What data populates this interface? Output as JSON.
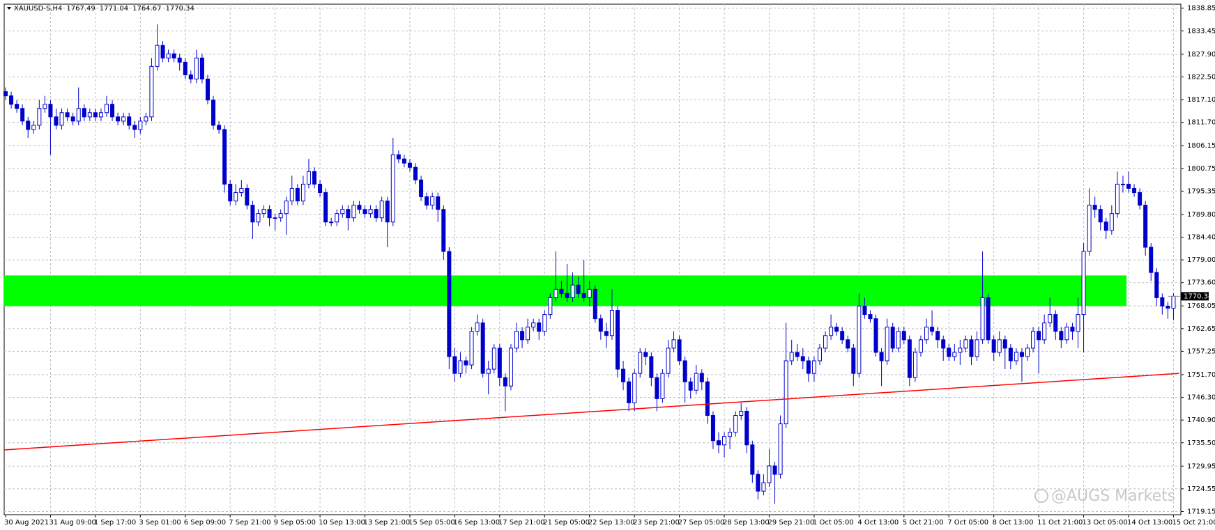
{
  "chart_data": {
    "type": "candlestick",
    "symbol": "XAUUSD-S,H4",
    "watermark": "@AUGS Markets",
    "color": "#0000cc",
    "up_fill": "#ffffff",
    "grid": true,
    "ylim": [
      1718.4,
      1839.8
    ],
    "yticks": [
      {
        "value": 1719.15,
        "label": "1719.15"
      },
      {
        "value": 1724.55,
        "label": "1724.55"
      },
      {
        "value": 1729.95,
        "label": "1729.95"
      },
      {
        "value": 1735.5,
        "label": "1735.50"
      },
      {
        "value": 1740.9,
        "label": "1740.90"
      },
      {
        "value": 1746.3,
        "label": "1746.30"
      },
      {
        "value": 1751.7,
        "label": "1751.70"
      },
      {
        "value": 1757.25,
        "label": "1757.25"
      },
      {
        "value": 1762.65,
        "label": "1762.65"
      },
      {
        "value": 1768.05,
        "label": "1768.05"
      },
      {
        "value": 1773.6,
        "label": "1773.60"
      },
      {
        "value": 1779.0,
        "label": "1779.00"
      },
      {
        "value": 1784.4,
        "label": "1784.40"
      },
      {
        "value": 1789.8,
        "label": "1789.80"
      },
      {
        "value": 1795.35,
        "label": "1795.35"
      },
      {
        "value": 1800.75,
        "label": "1800.75"
      },
      {
        "value": 1806.15,
        "label": "1806.15"
      },
      {
        "value": 1811.7,
        "label": "1811.70"
      },
      {
        "value": 1817.1,
        "label": "1817.10"
      },
      {
        "value": 1822.5,
        "label": "1822.50"
      },
      {
        "value": 1827.9,
        "label": "1827.90"
      },
      {
        "value": 1833.45,
        "label": "1833.45"
      },
      {
        "value": 1838.85,
        "label": "1838.85"
      }
    ],
    "zone": {
      "color": "#00ff00",
      "low": 1768.0,
      "high": 1775.3,
      "from": 0,
      "to": 200
    },
    "trendline": {
      "color": "#ff0000",
      "start": [
        0,
        1733.8
      ],
      "end": [
        209,
        1752.0
      ]
    },
    "x": [
      "30 Aug 2021",
      null,
      null,
      null,
      null,
      null,
      null,
      null,
      "31 Aug 09:00",
      null,
      null,
      null,
      null,
      null,
      null,
      null,
      "1 Sep 17:00",
      null,
      null,
      null,
      null,
      null,
      null,
      null,
      "3 Sep 01:00",
      null,
      null,
      null,
      null,
      null,
      null,
      null,
      "6 Sep 09:00",
      null,
      null,
      null,
      null,
      null,
      null,
      null,
      "7 Sep 21:00",
      null,
      null,
      null,
      null,
      null,
      null,
      null,
      "9 Sep 05:00",
      null,
      null,
      null,
      null,
      null,
      null,
      null,
      "10 Sep 13:00",
      null,
      null,
      null,
      null,
      null,
      null,
      null,
      "13 Sep 21:00",
      null,
      null,
      null,
      null,
      null,
      null,
      null,
      "15 Sep 05:00",
      null,
      null,
      null,
      null,
      null,
      null,
      null,
      "16 Sep 13:00",
      null,
      null,
      null,
      null,
      null,
      null,
      null,
      "17 Sep 21:00",
      null,
      null,
      null,
      null,
      null,
      null,
      null,
      "21 Sep 05:00",
      null,
      null,
      null,
      null,
      null,
      null,
      null,
      "22 Sep 13:00",
      null,
      null,
      null,
      null,
      null,
      null,
      null,
      "23 Sep 21:00",
      null,
      null,
      null,
      null,
      null,
      null,
      null,
      "27 Sep 05:00",
      null,
      null,
      null,
      null,
      null,
      null,
      null,
      "28 Sep 13:00",
      null,
      null,
      null,
      null,
      null,
      null,
      null,
      "29 Sep 21:00",
      null,
      null,
      null,
      null,
      null,
      null,
      null,
      "1 Oct 05:00",
      null,
      null,
      null,
      null,
      null,
      null,
      null,
      "4 Oct 13:00",
      null,
      null,
      null,
      null,
      null,
      null,
      null,
      "5 Oct 21:00",
      null,
      null,
      null,
      null,
      null,
      null,
      null,
      "7 Oct 05:00",
      null,
      null,
      null,
      null,
      null,
      null,
      null,
      "8 Oct 13:00",
      null,
      null,
      null,
      null,
      null,
      null,
      null,
      "11 Oct 21:00",
      null,
      null,
      null,
      null,
      null,
      null,
      null,
      "13 Oct 05:00",
      null,
      null,
      null,
      null,
      null,
      null,
      null,
      "14 Oct 13:00",
      null,
      null,
      null,
      null,
      null,
      null,
      null,
      "15 Oct 21:00"
    ],
    "ohlc": [
      [
        1819,
        1820,
        1817,
        1818
      ],
      [
        1818,
        1819,
        1815,
        1816
      ],
      [
        1816,
        1817,
        1814,
        1815
      ],
      [
        1815,
        1816,
        1811,
        1812
      ],
      [
        1812,
        1813,
        1808,
        1810
      ],
      [
        1810,
        1812,
        1809,
        1811
      ],
      [
        1811,
        1817,
        1810,
        1815
      ],
      [
        1815,
        1818,
        1814,
        1816
      ],
      [
        1816,
        1817,
        1804,
        1813
      ],
      [
        1813,
        1815,
        1810,
        1811
      ],
      [
        1811,
        1815,
        1810,
        1814
      ],
      [
        1814,
        1815,
        1812,
        1813
      ],
      [
        1813,
        1814,
        1811,
        1812
      ],
      [
        1812,
        1820,
        1811,
        1815
      ],
      [
        1815,
        1816,
        1812,
        1813
      ],
      [
        1813,
        1815,
        1812,
        1814
      ],
      [
        1814,
        1815,
        1812,
        1813
      ],
      [
        1813,
        1815,
        1812,
        1814
      ],
      [
        1814,
        1818,
        1813,
        1816
      ],
      [
        1816,
        1817,
        1812,
        1813
      ],
      [
        1813,
        1814,
        1811,
        1812
      ],
      [
        1812,
        1814,
        1811,
        1813
      ],
      [
        1813,
        1814,
        1810,
        1811
      ],
      [
        1811,
        1812,
        1808,
        1810
      ],
      [
        1810,
        1813,
        1809,
        1812
      ],
      [
        1812,
        1814,
        1811,
        1813
      ],
      [
        1813,
        1827,
        1812,
        1825
      ],
      [
        1825,
        1835,
        1824,
        1830
      ],
      [
        1830,
        1831,
        1826,
        1827
      ],
      [
        1827,
        1829,
        1826,
        1828
      ],
      [
        1828,
        1829,
        1826,
        1827
      ],
      [
        1827,
        1828,
        1824,
        1826
      ],
      [
        1826,
        1827,
        1822,
        1823
      ],
      [
        1823,
        1824,
        1821,
        1822
      ],
      [
        1822,
        1829,
        1821,
        1827
      ],
      [
        1827,
        1828,
        1821,
        1822
      ],
      [
        1822,
        1823,
        1816,
        1817
      ],
      [
        1817,
        1818,
        1810,
        1811
      ],
      [
        1811,
        1812,
        1809,
        1810
      ],
      [
        1810,
        1811,
        1795,
        1797
      ],
      [
        1797,
        1798,
        1792,
        1793
      ],
      [
        1793,
        1797,
        1792,
        1795
      ],
      [
        1795,
        1798,
        1794,
        1796
      ],
      [
        1796,
        1797,
        1791,
        1792
      ],
      [
        1792,
        1793,
        1784,
        1788
      ],
      [
        1788,
        1791,
        1787,
        1790
      ],
      [
        1790,
        1792,
        1789,
        1791
      ],
      [
        1791,
        1792,
        1787,
        1789
      ],
      [
        1789,
        1790,
        1786,
        1789
      ],
      [
        1789,
        1791,
        1788,
        1790
      ],
      [
        1790,
        1794,
        1785,
        1793
      ],
      [
        1793,
        1799,
        1792,
        1796
      ],
      [
        1796,
        1797,
        1792,
        1793
      ],
      [
        1793,
        1799,
        1792,
        1797
      ],
      [
        1797,
        1803,
        1796,
        1800
      ],
      [
        1800,
        1801,
        1796,
        1797
      ],
      [
        1797,
        1798,
        1794,
        1795
      ],
      [
        1795,
        1796,
        1787,
        1788
      ],
      [
        1788,
        1789,
        1787,
        1788
      ],
      [
        1788,
        1791,
        1787,
        1790
      ],
      [
        1790,
        1792,
        1789,
        1791
      ],
      [
        1791,
        1792,
        1786,
        1789
      ],
      [
        1789,
        1793,
        1788,
        1792
      ],
      [
        1792,
        1793,
        1790,
        1791
      ],
      [
        1791,
        1792,
        1789,
        1790
      ],
      [
        1790,
        1792,
        1789,
        1791
      ],
      [
        1791,
        1792,
        1788,
        1789
      ],
      [
        1789,
        1794,
        1788,
        1793
      ],
      [
        1793,
        1794,
        1782,
        1788
      ],
      [
        1788,
        1808,
        1787,
        1804
      ],
      [
        1804,
        1805,
        1802,
        1803
      ],
      [
        1803,
        1804,
        1801,
        1802
      ],
      [
        1802,
        1803,
        1800,
        1801
      ],
      [
        1801,
        1802,
        1797,
        1798
      ],
      [
        1798,
        1799,
        1793,
        1794
      ],
      [
        1794,
        1795,
        1791,
        1792
      ],
      [
        1792,
        1795,
        1791,
        1794
      ],
      [
        1794,
        1795,
        1788,
        1791
      ],
      [
        1791,
        1792,
        1779,
        1781
      ],
      [
        1781,
        1782,
        1753,
        1756
      ],
      [
        1756,
        1758,
        1750,
        1752
      ],
      [
        1752,
        1757,
        1751,
        1755
      ],
      [
        1755,
        1756,
        1752,
        1754
      ],
      [
        1754,
        1763,
        1753,
        1762
      ],
      [
        1762,
        1766,
        1761,
        1764
      ],
      [
        1764,
        1765,
        1751,
        1752
      ],
      [
        1752,
        1755,
        1747,
        1753
      ],
      [
        1753,
        1759,
        1752,
        1758
      ],
      [
        1758,
        1759,
        1749,
        1751
      ],
      [
        1751,
        1752,
        1743,
        1749
      ],
      [
        1749,
        1759,
        1748,
        1758
      ],
      [
        1758,
        1764,
        1757,
        1762
      ],
      [
        1762,
        1763,
        1758,
        1760
      ],
      [
        1760,
        1765,
        1759,
        1763
      ],
      [
        1763,
        1765,
        1762,
        1764
      ],
      [
        1764,
        1765,
        1760,
        1762
      ],
      [
        1762,
        1767,
        1761,
        1766
      ],
      [
        1766,
        1771,
        1765,
        1770
      ],
      [
        1770,
        1781,
        1769,
        1772
      ],
      [
        1772,
        1774,
        1770,
        1771
      ],
      [
        1771,
        1778,
        1769,
        1770
      ],
      [
        1770,
        1776,
        1769,
        1773
      ],
      [
        1773,
        1775,
        1770,
        1771
      ],
      [
        1771,
        1779,
        1769,
        1770
      ],
      [
        1770,
        1774,
        1768,
        1772
      ],
      [
        1772,
        1773,
        1764,
        1765
      ],
      [
        1765,
        1766,
        1760,
        1762
      ],
      [
        1762,
        1764,
        1758,
        1761
      ],
      [
        1761,
        1772,
        1760,
        1767
      ],
      [
        1767,
        1768,
        1751,
        1753
      ],
      [
        1753,
        1755,
        1748,
        1750
      ],
      [
        1750,
        1751,
        1743,
        1745
      ],
      [
        1745,
        1753,
        1743,
        1752
      ],
      [
        1752,
        1758,
        1751,
        1757
      ],
      [
        1757,
        1758,
        1754,
        1756
      ],
      [
        1756,
        1757,
        1749,
        1751
      ],
      [
        1751,
        1752,
        1743,
        1746
      ],
      [
        1746,
        1753,
        1745,
        1752
      ],
      [
        1752,
        1760,
        1751,
        1758
      ],
      [
        1758,
        1762,
        1757,
        1760
      ],
      [
        1760,
        1761,
        1754,
        1755
      ],
      [
        1755,
        1756,
        1745,
        1750
      ],
      [
        1750,
        1751,
        1746,
        1748
      ],
      [
        1748,
        1754,
        1747,
        1752
      ],
      [
        1752,
        1753,
        1748,
        1750
      ],
      [
        1750,
        1751,
        1740,
        1742
      ],
      [
        1742,
        1743,
        1734,
        1736
      ],
      [
        1736,
        1738,
        1733,
        1735
      ],
      [
        1735,
        1738,
        1732,
        1737
      ],
      [
        1737,
        1739,
        1734,
        1738
      ],
      [
        1738,
        1743,
        1737,
        1742
      ],
      [
        1742,
        1745,
        1741,
        1743
      ],
      [
        1743,
        1744,
        1733,
        1735
      ],
      [
        1735,
        1736,
        1726,
        1728
      ],
      [
        1728,
        1729,
        1722,
        1724
      ],
      [
        1724,
        1728,
        1723,
        1726
      ],
      [
        1726,
        1734,
        1725,
        1730
      ],
      [
        1730,
        1731,
        1721,
        1728
      ],
      [
        1728,
        1742,
        1727,
        1740
      ],
      [
        1740,
        1764,
        1739,
        1755
      ],
      [
        1755,
        1760,
        1754,
        1757
      ],
      [
        1757,
        1759,
        1755,
        1756
      ],
      [
        1756,
        1758,
        1753,
        1755
      ],
      [
        1755,
        1756,
        1750,
        1752
      ],
      [
        1752,
        1756,
        1750,
        1755
      ],
      [
        1755,
        1759,
        1754,
        1758
      ],
      [
        1758,
        1762,
        1757,
        1761
      ],
      [
        1761,
        1766,
        1760,
        1763
      ],
      [
        1763,
        1764,
        1761,
        1762
      ],
      [
        1762,
        1763,
        1759,
        1760
      ],
      [
        1760,
        1761,
        1757,
        1758
      ],
      [
        1758,
        1759,
        1749,
        1752
      ],
      [
        1752,
        1771,
        1751,
        1768
      ],
      [
        1768,
        1770,
        1765,
        1766
      ],
      [
        1766,
        1767,
        1764,
        1765
      ],
      [
        1765,
        1766,
        1756,
        1757
      ],
      [
        1757,
        1758,
        1749,
        1755
      ],
      [
        1755,
        1765,
        1754,
        1763
      ],
      [
        1763,
        1764,
        1757,
        1758
      ],
      [
        1758,
        1763,
        1757,
        1762
      ],
      [
        1762,
        1763,
        1759,
        1760
      ],
      [
        1760,
        1761,
        1749,
        1751
      ],
      [
        1751,
        1758,
        1750,
        1757
      ],
      [
        1757,
        1761,
        1756,
        1760
      ],
      [
        1760,
        1765,
        1759,
        1763
      ],
      [
        1763,
        1767,
        1761,
        1762
      ],
      [
        1762,
        1763,
        1758,
        1760
      ],
      [
        1760,
        1761,
        1755,
        1758
      ],
      [
        1758,
        1759,
        1755,
        1756
      ],
      [
        1756,
        1759,
        1755,
        1757
      ],
      [
        1757,
        1760,
        1754,
        1758
      ],
      [
        1758,
        1761,
        1757,
        1760
      ],
      [
        1760,
        1761,
        1754,
        1756
      ],
      [
        1756,
        1762,
        1755,
        1760
      ],
      [
        1760,
        1781,
        1759,
        1770
      ],
      [
        1770,
        1771,
        1759,
        1760
      ],
      [
        1760,
        1761,
        1755,
        1757
      ],
      [
        1757,
        1762,
        1756,
        1760
      ],
      [
        1760,
        1761,
        1753,
        1758
      ],
      [
        1758,
        1759,
        1753,
        1755
      ],
      [
        1755,
        1758,
        1754,
        1757
      ],
      [
        1757,
        1758,
        1750,
        1756
      ],
      [
        1756,
        1759,
        1755,
        1758
      ],
      [
        1758,
        1763,
        1757,
        1762
      ],
      [
        1762,
        1763,
        1752,
        1760
      ],
      [
        1760,
        1766,
        1759,
        1764
      ],
      [
        1764,
        1770,
        1763,
        1766
      ],
      [
        1766,
        1767,
        1760,
        1762
      ],
      [
        1762,
        1763,
        1758,
        1760
      ],
      [
        1760,
        1764,
        1759,
        1763
      ],
      [
        1763,
        1764,
        1760,
        1762
      ],
      [
        1762,
        1770,
        1758,
        1766
      ],
      [
        1766,
        1783,
        1757,
        1781
      ],
      [
        1781,
        1796,
        1780,
        1792
      ],
      [
        1792,
        1794,
        1789,
        1791
      ],
      [
        1791,
        1792,
        1786,
        1788
      ],
      [
        1788,
        1789,
        1784,
        1786
      ],
      [
        1786,
        1792,
        1785,
        1790
      ],
      [
        1790,
        1800,
        1789,
        1797
      ],
      [
        1797,
        1799,
        1795,
        1797
      ],
      [
        1797,
        1800,
        1795,
        1796
      ],
      [
        1796,
        1797,
        1794,
        1795
      ],
      [
        1795,
        1796,
        1791,
        1792
      ],
      [
        1792,
        1793,
        1780,
        1782
      ],
      [
        1782,
        1783,
        1774,
        1776
      ],
      [
        1776,
        1777,
        1768,
        1770
      ],
      [
        1770,
        1771,
        1766,
        1768
      ],
      [
        1768,
        1769,
        1765,
        1767.49
      ],
      [
        1767.49,
        1771.04,
        1764.67,
        1770.34
      ]
    ]
  }
}
